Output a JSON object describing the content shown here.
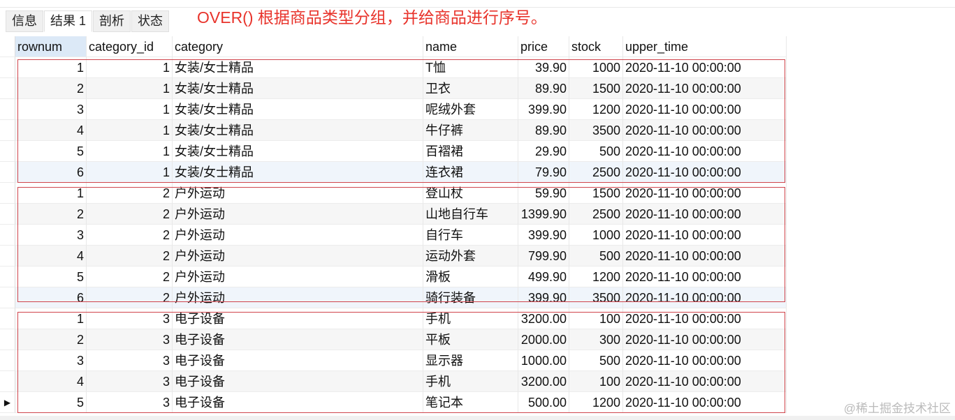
{
  "tabs": [
    "信息",
    "结果 1",
    "剖析",
    "状态"
  ],
  "active_tab": 1,
  "annotation": "OVER() 根据商品类型分组，并给商品进行序号。",
  "columns": [
    "rownum",
    "category_id",
    "category",
    "name",
    "price",
    "stock",
    "upper_time"
  ],
  "rows": [
    [
      "1",
      "1",
      "女装/女士精品",
      "T恤",
      "39.90",
      "1000",
      "2020-11-10 00:00:00"
    ],
    [
      "2",
      "1",
      "女装/女士精品",
      "卫衣",
      "89.90",
      "1500",
      "2020-11-10 00:00:00"
    ],
    [
      "3",
      "1",
      "女装/女士精品",
      "呢绒外套",
      "399.90",
      "1200",
      "2020-11-10 00:00:00"
    ],
    [
      "4",
      "1",
      "女装/女士精品",
      "牛仔裤",
      "89.90",
      "3500",
      "2020-11-10 00:00:00"
    ],
    [
      "5",
      "1",
      "女装/女士精品",
      "百褶裙",
      "29.90",
      "500",
      "2020-11-10 00:00:00"
    ],
    [
      "6",
      "1",
      "女装/女士精品",
      "连衣裙",
      "79.90",
      "2500",
      "2020-11-10 00:00:00"
    ],
    [
      "1",
      "2",
      "户外运动",
      "登山杖",
      "59.90",
      "1500",
      "2020-11-10 00:00:00"
    ],
    [
      "2",
      "2",
      "户外运动",
      "山地自行车",
      "1399.90",
      "2500",
      "2020-11-10 00:00:00"
    ],
    [
      "3",
      "2",
      "户外运动",
      "自行车",
      "399.90",
      "1000",
      "2020-11-10 00:00:00"
    ],
    [
      "4",
      "2",
      "户外运动",
      "运动外套",
      "799.90",
      "500",
      "2020-11-10 00:00:00"
    ],
    [
      "5",
      "2",
      "户外运动",
      "滑板",
      "499.90",
      "1200",
      "2020-11-10 00:00:00"
    ],
    [
      "6",
      "2",
      "户外运动",
      "骑行装备",
      "399.90",
      "3500",
      "2020-11-10 00:00:00"
    ],
    [
      "1",
      "3",
      "电子设备",
      "手机",
      "3200.00",
      "100",
      "2020-11-10 00:00:00"
    ],
    [
      "2",
      "3",
      "电子设备",
      "平板",
      "2000.00",
      "300",
      "2020-11-10 00:00:00"
    ],
    [
      "3",
      "3",
      "电子设备",
      "显示器",
      "1000.00",
      "500",
      "2020-11-10 00:00:00"
    ],
    [
      "4",
      "3",
      "电子设备",
      "手机",
      "3200.00",
      "100",
      "2020-11-10 00:00:00"
    ],
    [
      "5",
      "3",
      "电子设备",
      "笔记本",
      "500.00",
      "1200",
      "2020-11-10 00:00:00"
    ]
  ],
  "current_row": 16,
  "watermark": "@稀土掘金技术社区",
  "highlight_color": "#d0454c"
}
